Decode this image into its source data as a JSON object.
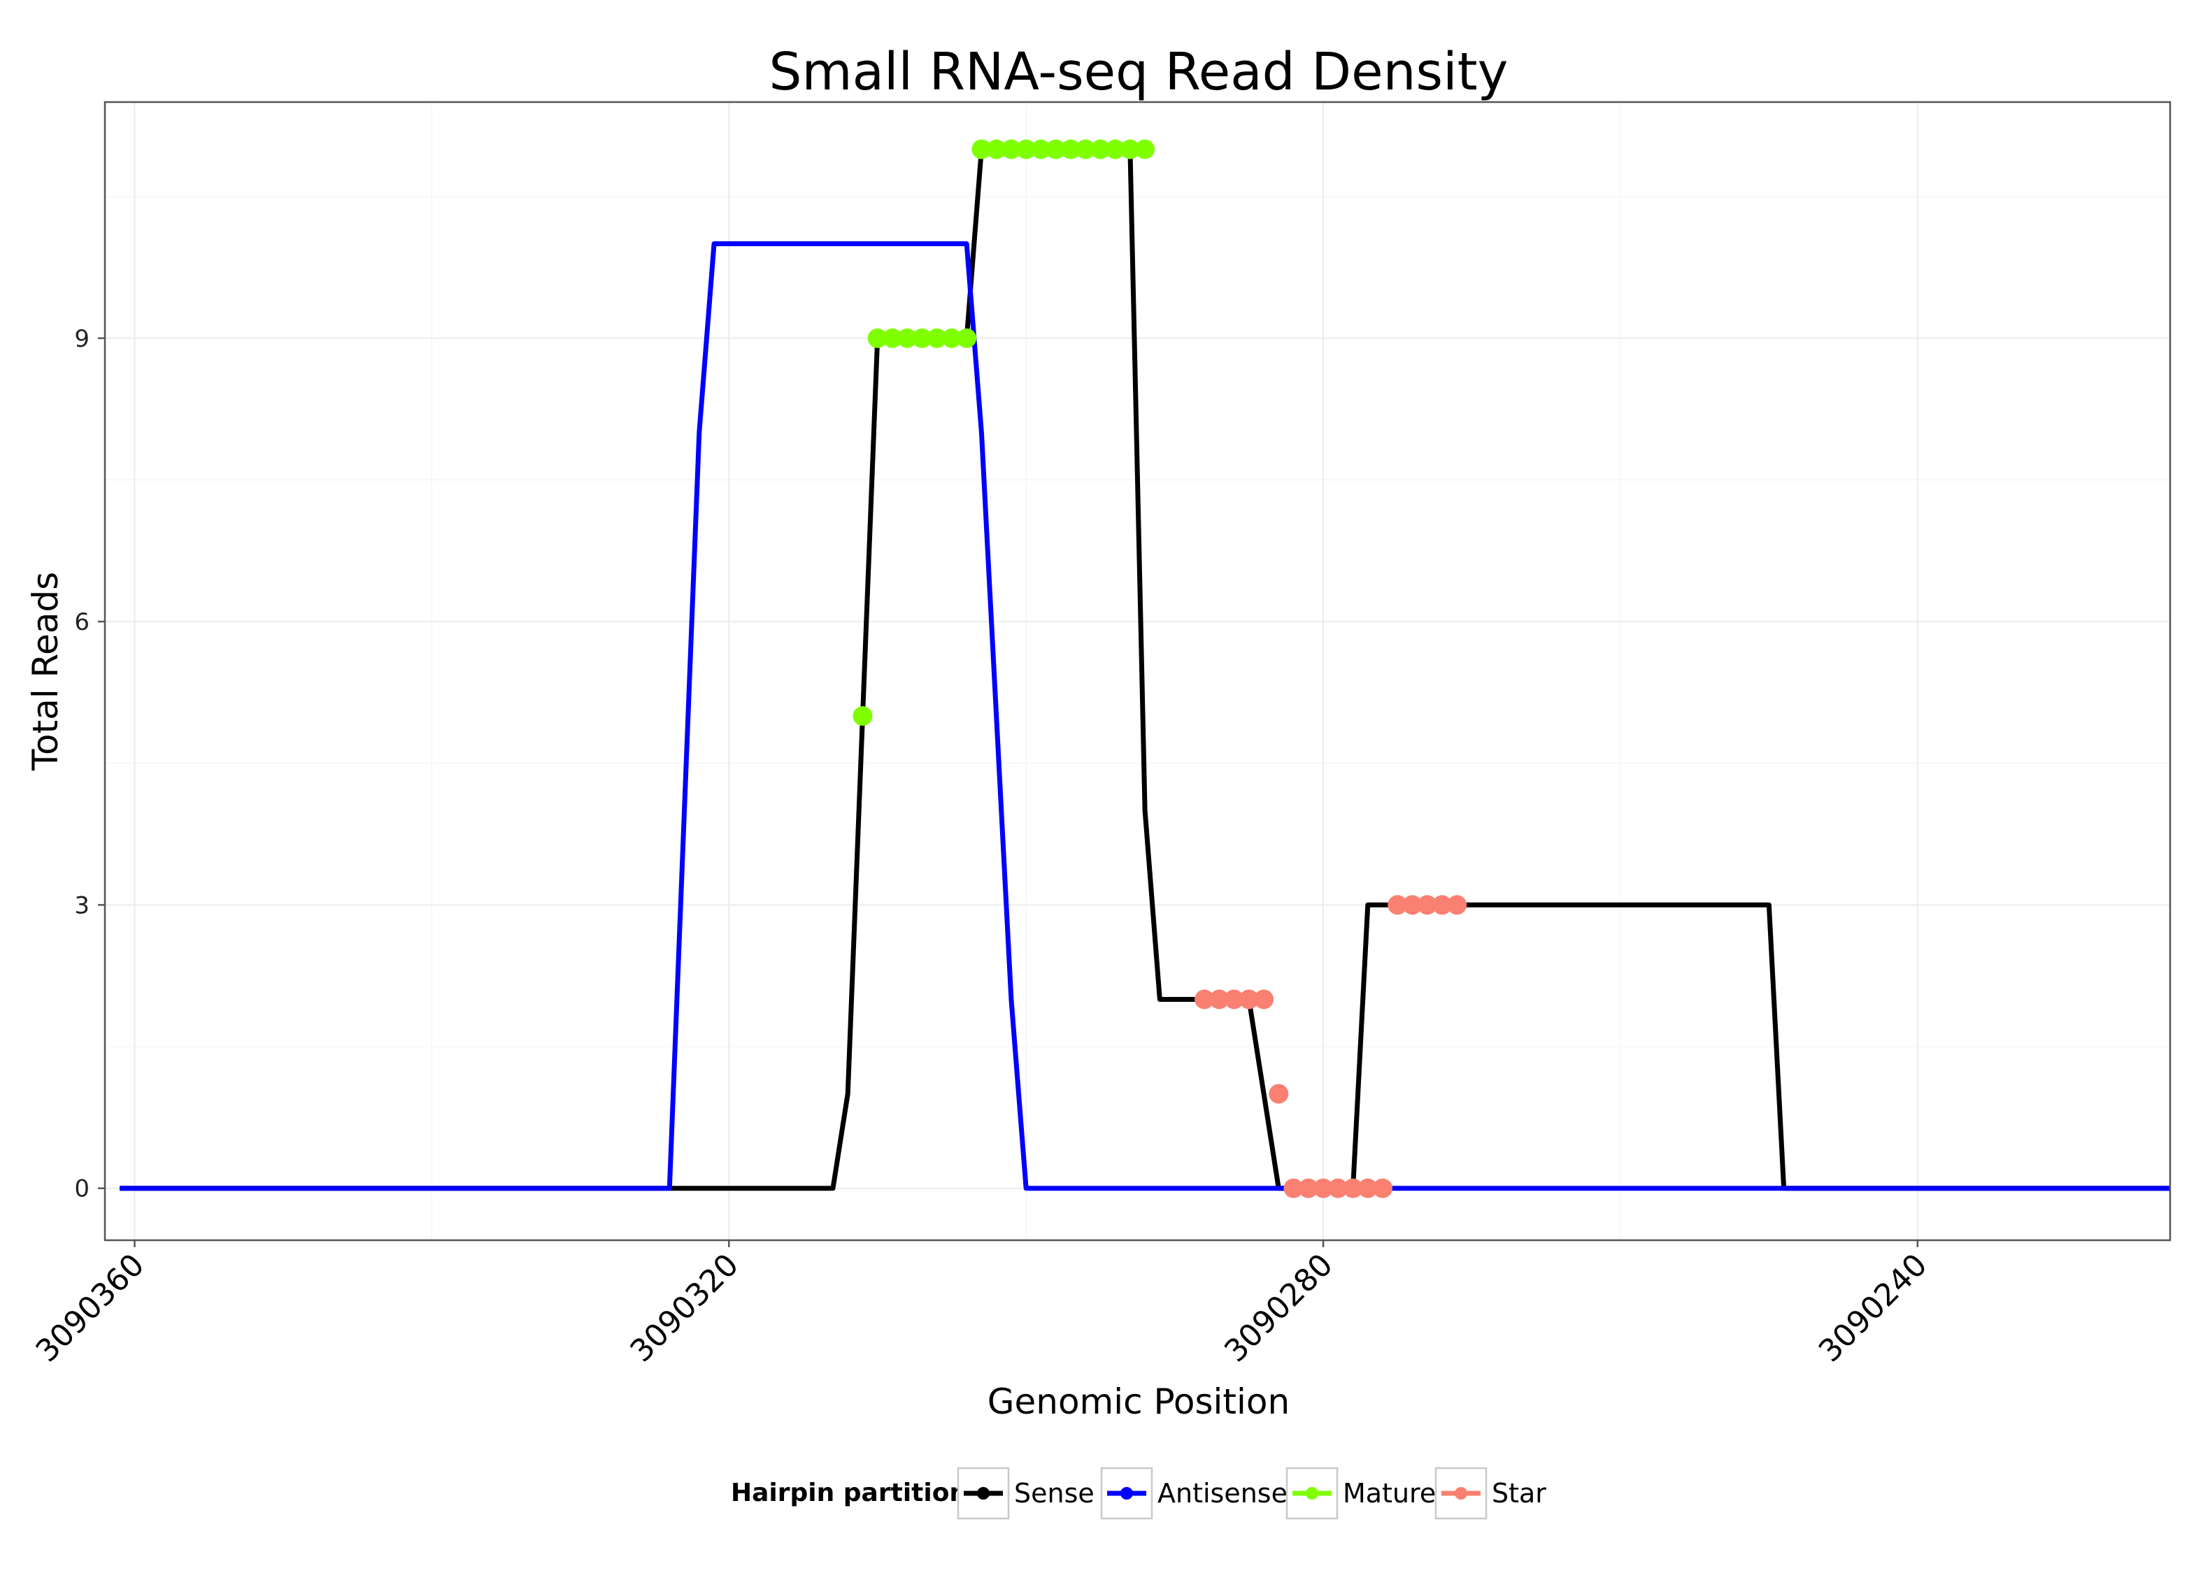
{
  "chart_data": {
    "type": "line",
    "title": "Small RNA-seq Read Density",
    "xlabel": "Genomic Position",
    "ylabel": "Total Reads",
    "x_reversed": true,
    "xlim": [
      3090223,
      3090362
    ],
    "ylim": [
      -0.55,
      11.5
    ],
    "x_ticks": [
      3090360,
      3090320,
      3090280,
      3090240
    ],
    "x_tick_labels": [
      "3090360",
      "3090320",
      "3090280",
      "3090240"
    ],
    "y_ticks": [
      0,
      3,
      6,
      9
    ],
    "y_tick_labels": [
      "0",
      "3",
      "6",
      "9"
    ],
    "grid": true,
    "legend_position": "bottom",
    "legend": {
      "title": "Hairpin partition",
      "entries": [
        {
          "name": "Sense",
          "color": "#000000"
        },
        {
          "name": "Antisense",
          "color": "#0000FF"
        },
        {
          "name": "Mature",
          "color": "#7FFF00"
        },
        {
          "name": "Star",
          "color": "#FA8072"
        }
      ]
    },
    "series": [
      {
        "name": "Sense",
        "color": "#000000",
        "x": [
          3090361,
          3090313,
          3090312,
          3090311,
          3090310,
          3090304,
          3090303,
          3090293,
          3090292,
          3090291,
          3090290,
          3090289,
          3090285,
          3090284,
          3090283,
          3090282,
          3090278,
          3090277,
          3090276,
          3090270,
          3090250,
          3090249,
          3090248,
          3090223
        ],
        "y": [
          0,
          0,
          1,
          5,
          9,
          9,
          11,
          11,
          4,
          2,
          2,
          2,
          2,
          1,
          0,
          0,
          0,
          3,
          3,
          3,
          3,
          0,
          0,
          0
        ]
      },
      {
        "name": "Antisense",
        "color": "#0000FF",
        "x": [
          3090361,
          3090324,
          3090323,
          3090322,
          3090321,
          3090305,
          3090304,
          3090303,
          3090302,
          3090301,
          3090300,
          3090249,
          3090223
        ],
        "y": [
          0,
          0,
          4,
          8,
          10,
          10,
          10,
          8,
          5,
          2,
          0,
          0,
          0
        ]
      },
      {
        "name": "Mature",
        "color": "#7FFF00",
        "x": [
          3090311,
          3090310,
          3090309,
          3090308,
          3090307,
          3090306,
          3090305,
          3090304,
          3090303,
          3090302,
          3090301,
          3090300,
          3090299,
          3090298,
          3090297,
          3090296,
          3090295,
          3090294,
          3090293,
          3090292
        ],
        "y": [
          5,
          9,
          9,
          9,
          9,
          9,
          9,
          9,
          11,
          11,
          11,
          11,
          11,
          11,
          11,
          11,
          11,
          11,
          11,
          11
        ]
      },
      {
        "name": "Star",
        "color": "#FA8072",
        "x": [
          3090288,
          3090287,
          3090286,
          3090285,
          3090284,
          3090283,
          3090282,
          3090281,
          3090280,
          3090279,
          3090278,
          3090277,
          3090276,
          3090275,
          3090274,
          3090273,
          3090272,
          3090271
        ],
        "y": [
          2,
          2,
          2,
          2,
          2,
          1,
          0,
          0,
          0,
          0,
          0,
          0,
          0,
          3,
          3,
          3,
          3,
          3
        ]
      }
    ]
  }
}
